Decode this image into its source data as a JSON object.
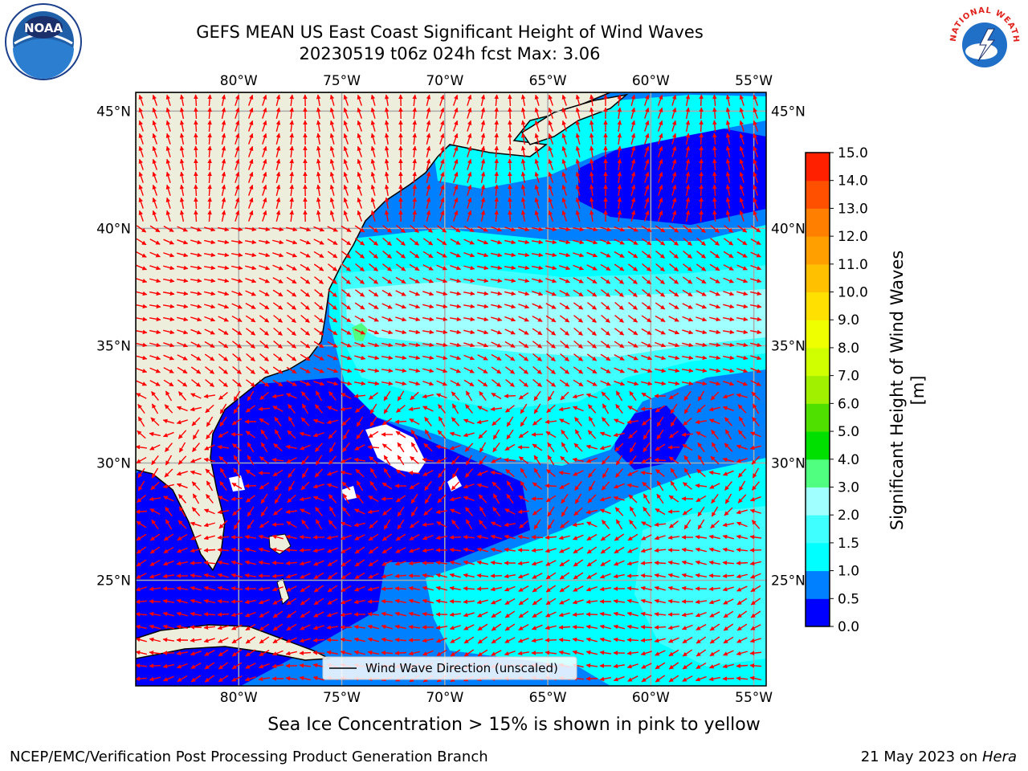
{
  "header": {
    "title_line1": "GEFS MEAN US East Coast Significant Height of Wind Waves",
    "title_line2": "20230519 t06z 024h fcst   Max: 3.06"
  },
  "logos": {
    "left": {
      "name": "noaa-logo",
      "text": "NOAA"
    },
    "right": {
      "name": "nws-logo",
      "text": "NATIONAL WEATHER SERVICE"
    }
  },
  "chart_data": {
    "type": "heatmap",
    "title": "GEFS MEAN US East Coast Significant Height of Wind Waves",
    "subtitle": "20230519 t06z 024h fcst   Max: 3.06",
    "max_value": 3.06,
    "lon_ticks": [
      "80°W",
      "75°W",
      "70°W",
      "65°W",
      "60°W",
      "55°W"
    ],
    "lat_ticks": [
      "45°N",
      "40°N",
      "35°N",
      "30°N",
      "25°N"
    ],
    "xlim": [
      -85,
      -54.4
    ],
    "ylim": [
      20.5,
      45.8
    ],
    "grid": true,
    "legend": {
      "label": "Wind Wave Direction (unscaled)",
      "placement": "bottom-center"
    },
    "colorbar": {
      "label": "Significant Height of Wind Waves [m]",
      "ticks": [
        "15.0",
        "14.0",
        "13.0",
        "12.0",
        "11.0",
        "10.0",
        "9.0",
        "8.0",
        "7.0",
        "6.0",
        "5.0",
        "4.0",
        "3.0",
        "2.0",
        "1.5",
        "1.0",
        "0.5",
        "0.0"
      ],
      "bounds": [
        0,
        0.5,
        1.0,
        1.5,
        2.0,
        3.0,
        4.0,
        5.0,
        6.0,
        7.0,
        8.0,
        9.0,
        10.0,
        11.0,
        12.0,
        13.0,
        14.0,
        15.0
      ],
      "colors": [
        "#0000ff",
        "#0080ff",
        "#00ffff",
        "#40ffff",
        "#a0ffff",
        "#50ff80",
        "#00e000",
        "#50e000",
        "#a0f000",
        "#d0ff00",
        "#f0ff00",
        "#ffe000",
        "#ffc000",
        "#ffa000",
        "#ff8000",
        "#ff5000",
        "#ff2000"
      ]
    },
    "land_color": "#eeeedd",
    "arrow_color": "#ff0000"
  },
  "caption": "Sea Ice Concentration > 15% is shown in pink to yellow",
  "footer": {
    "left": "NCEP/EMC/Verification Post Processing Product Generation Branch",
    "right_date": "21 May 2023 on ",
    "right_host": "Hera"
  }
}
